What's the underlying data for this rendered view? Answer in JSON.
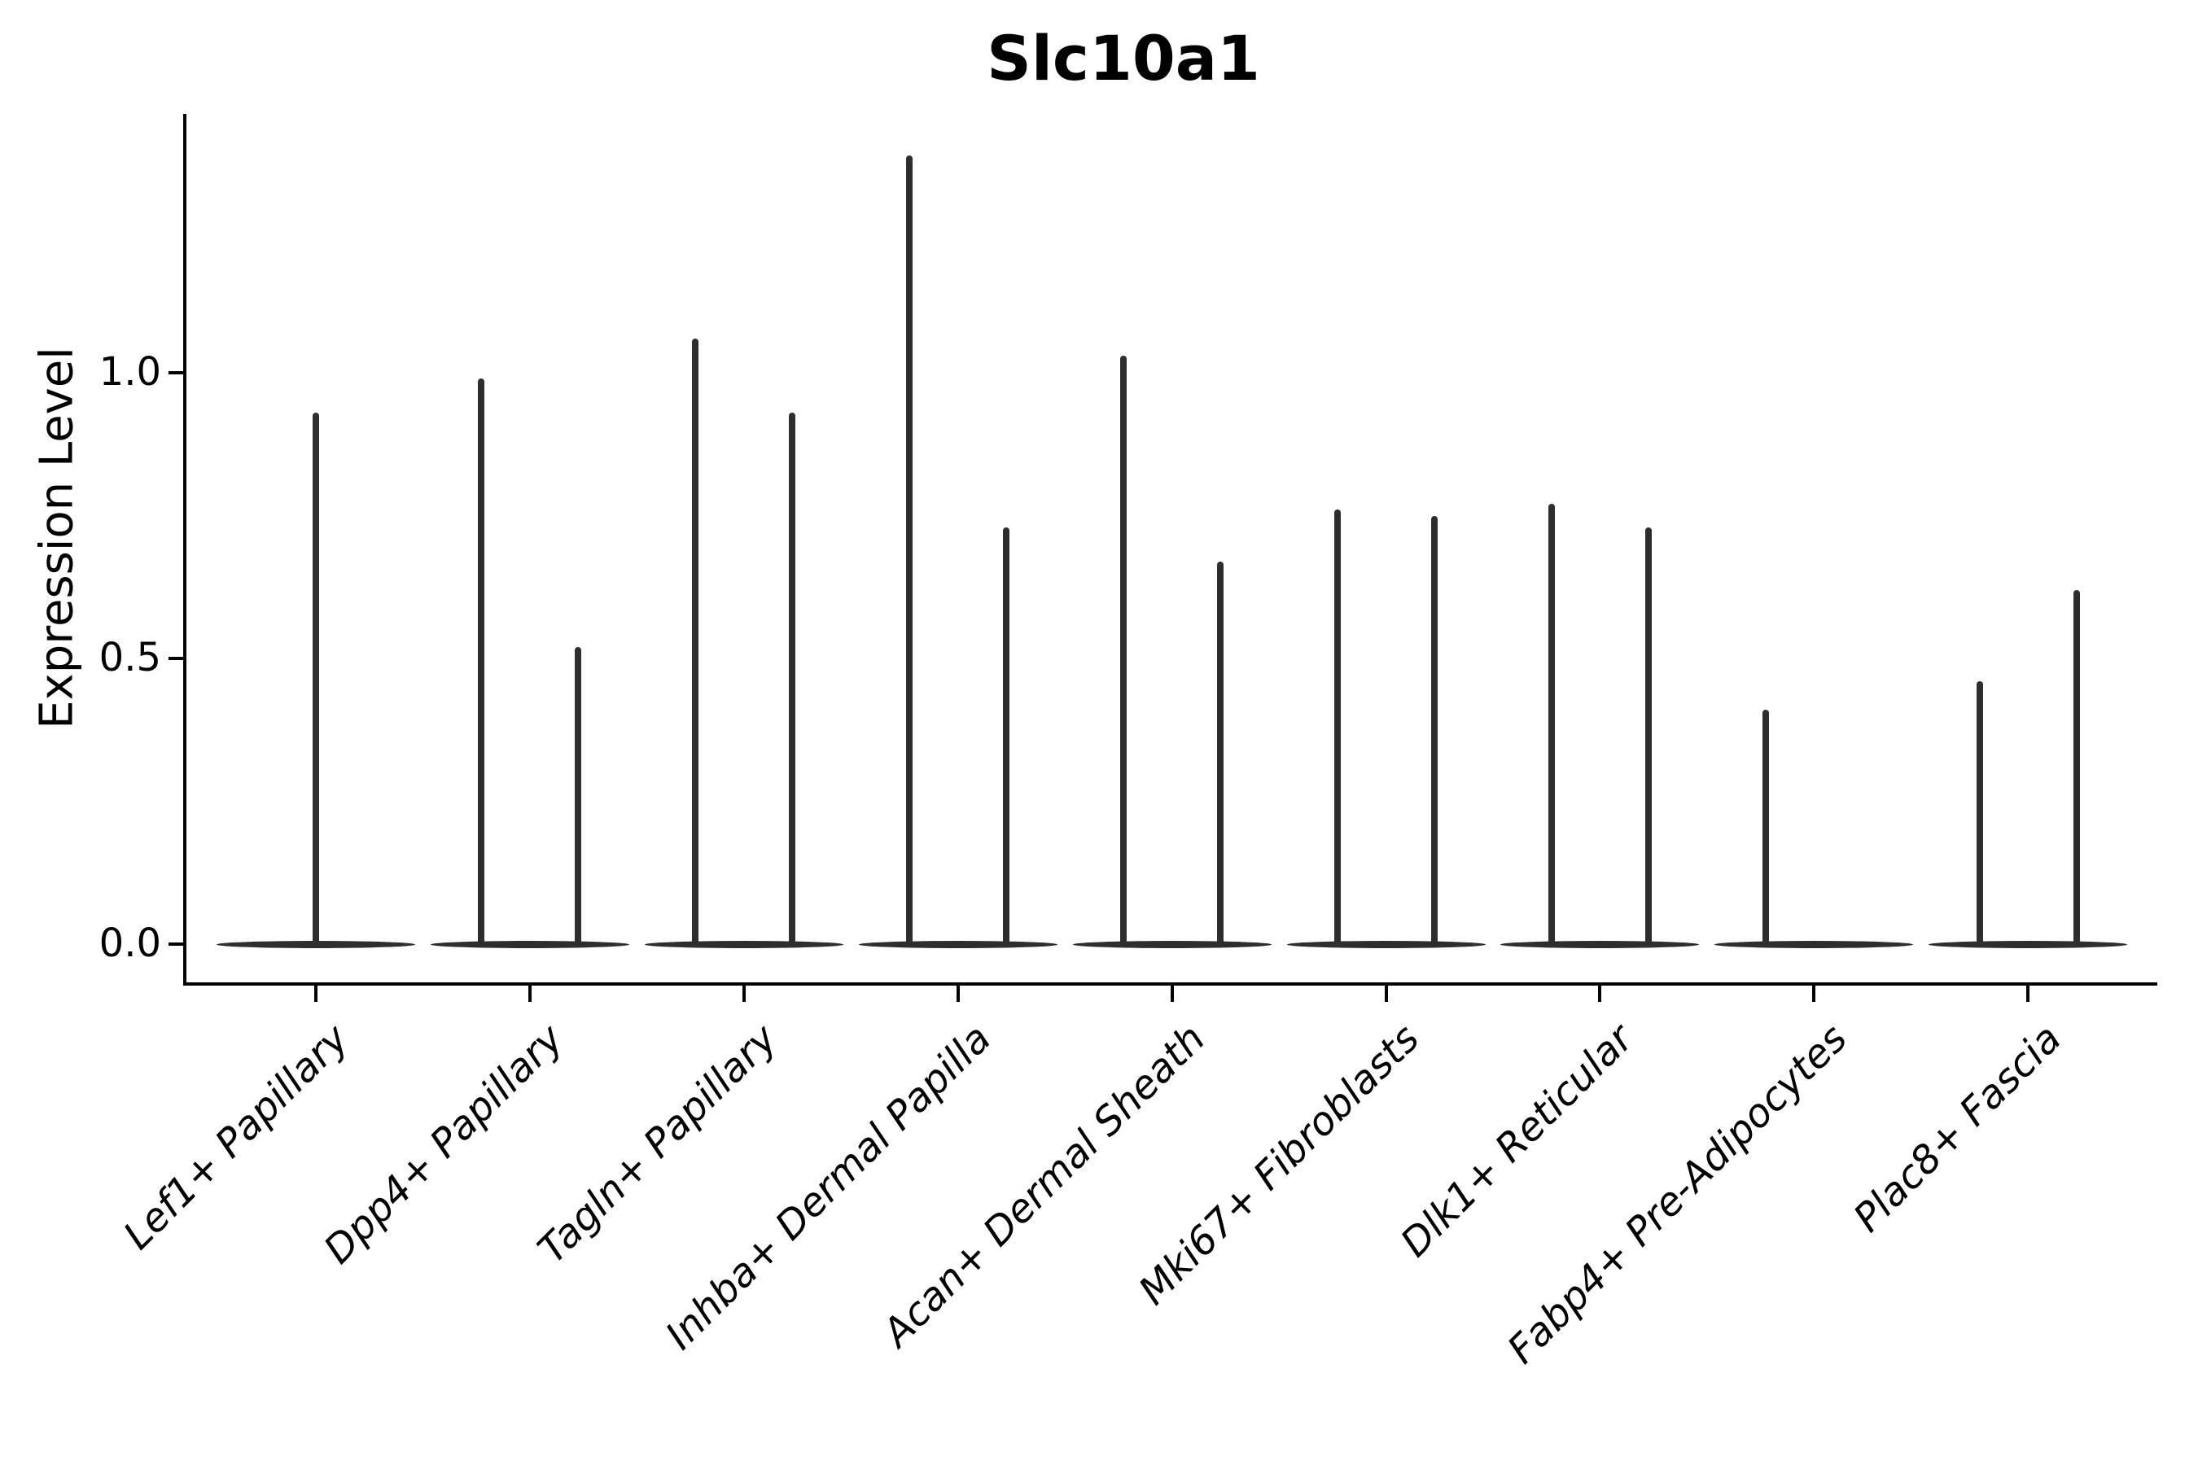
{
  "page": {
    "background": "#ffffff"
  },
  "chart_data": {
    "type": "violin",
    "title": "Slc10a1",
    "ylabel": "Expression Level",
    "xlabel": "",
    "grid": false,
    "legend": null,
    "ylim": [
      -0.07,
      1.45
    ],
    "yticks": [
      {
        "label": "0.0",
        "value": 0.0
      },
      {
        "label": "0.5",
        "value": 0.5
      },
      {
        "label": "1.0",
        "value": 1.0
      }
    ],
    "baseline_value": 0.0,
    "violin_color": "#2e2e2e",
    "axis_color": "#000000",
    "categories": [
      "Lef1+ Papillary",
      "Dpp4+ Papillary",
      "Tagln+ Papillary",
      "Inhba+ Dermal Papilla",
      "Acan+ Dermal Sheath",
      "Mki67+ Fibroblasts",
      "Dlk1+ Reticular",
      "Fabp4+ Pre-Adipocytes",
      "Plac8+ Fascia"
    ],
    "groups": [
      {
        "label": "Lef1+ Papillary",
        "violins": [
          {
            "position": "center",
            "max": 0.93
          }
        ]
      },
      {
        "label": "Dpp4+ Papillary",
        "violins": [
          {
            "position": "left",
            "max": 0.99
          },
          {
            "position": "right",
            "max": 0.52
          }
        ]
      },
      {
        "label": "Tagln+ Papillary",
        "violins": [
          {
            "position": "left",
            "max": 1.06
          },
          {
            "position": "right",
            "max": 0.93
          }
        ]
      },
      {
        "label": "Inhba+ Dermal Papilla",
        "violins": [
          {
            "position": "left",
            "max": 1.38
          },
          {
            "position": "right",
            "max": 0.73
          }
        ]
      },
      {
        "label": "Acan+ Dermal Sheath",
        "violins": [
          {
            "position": "left",
            "max": 1.03
          },
          {
            "position": "right",
            "max": 0.67
          }
        ]
      },
      {
        "label": "Mki67+ Fibroblasts",
        "violins": [
          {
            "position": "left",
            "max": 0.76
          },
          {
            "position": "right",
            "max": 0.75
          }
        ]
      },
      {
        "label": "Dlk1+ Reticular",
        "violins": [
          {
            "position": "left",
            "max": 0.77
          },
          {
            "position": "right",
            "max": 0.73
          }
        ]
      },
      {
        "label": "Fabp4+ Pre-Adipocytes",
        "violins": [
          {
            "position": "left",
            "max": 0.41
          }
        ]
      },
      {
        "label": "Plac8+ Fascia",
        "violins": [
          {
            "position": "left",
            "max": 0.46
          },
          {
            "position": "right",
            "max": 0.62
          }
        ]
      }
    ]
  }
}
